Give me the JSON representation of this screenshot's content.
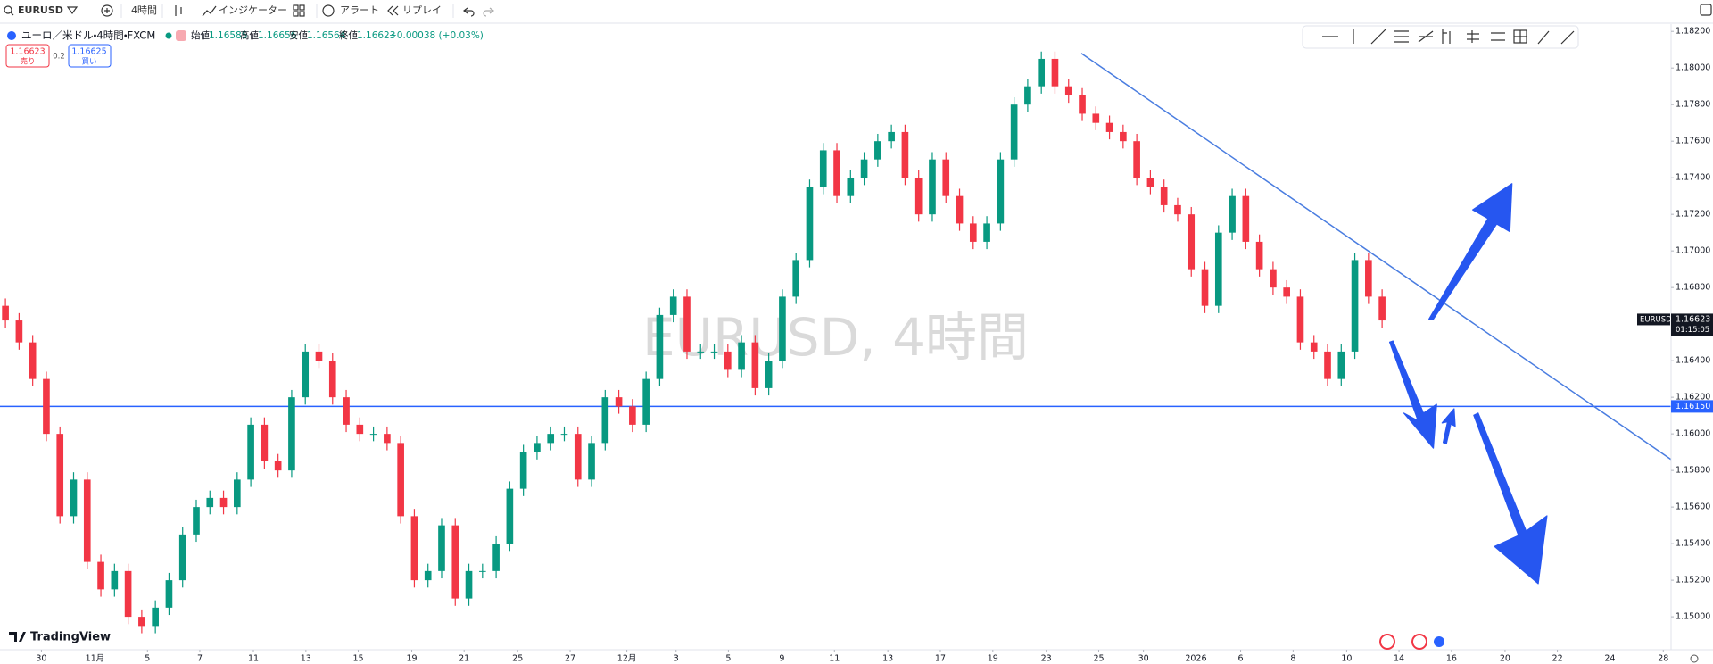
{
  "toolbar": {
    "symbol": "EURUSD",
    "interval": "4時間",
    "indicators": "インジケーター",
    "alert": "アラート",
    "replay": "リプレイ"
  },
  "legend": {
    "title": "ユーロ／米ドル・4時間・FXCM",
    "open_label": "始値",
    "open": "1.16585",
    "high_label": "高値",
    "high": "1.16656",
    "low_label": "安値",
    "low": "1.16564",
    "close_label": "終値",
    "close": "1.16623",
    "change": "+0.00038 (+0.03%)"
  },
  "trade": {
    "sell_price": "1.16623",
    "sell": "売り",
    "spread": "0.2",
    "buy_price": "1.16625",
    "buy": "買い"
  },
  "branding": "TradingView",
  "chart_data": {
    "type": "candlestick",
    "watermark": "EURUSD, 4時間",
    "up_color": "#089981",
    "down_color": "#f23645",
    "grid": false,
    "xlim": [
      -0.4,
      122.2
    ],
    "ylim": [
      1.1482,
      1.1824
    ],
    "xticks": [
      {
        "value": 2.64,
        "label": "30"
      },
      {
        "value": 6.57,
        "label": "11月"
      },
      {
        "value": 10.42,
        "label": "5"
      },
      {
        "value": 14.26,
        "label": "7"
      },
      {
        "value": 18.19,
        "label": "11"
      },
      {
        "value": 22.04,
        "label": "13"
      },
      {
        "value": 25.88,
        "label": "15"
      },
      {
        "value": 29.81,
        "label": "19"
      },
      {
        "value": 33.65,
        "label": "21"
      },
      {
        "value": 37.58,
        "label": "25"
      },
      {
        "value": 41.43,
        "label": "27"
      },
      {
        "value": 45.59,
        "label": "12月"
      },
      {
        "value": 49.2,
        "label": "3"
      },
      {
        "value": 53.04,
        "label": "5"
      },
      {
        "value": 56.97,
        "label": "9"
      },
      {
        "value": 60.82,
        "label": "11"
      },
      {
        "value": 64.74,
        "label": "13"
      },
      {
        "value": 68.59,
        "label": "17"
      },
      {
        "value": 72.44,
        "label": "19"
      },
      {
        "value": 76.36,
        "label": "23"
      },
      {
        "value": 80.21,
        "label": "25"
      },
      {
        "value": 83.49,
        "label": "30"
      },
      {
        "value": 87.34,
        "label": "2026"
      },
      {
        "value": 90.62,
        "label": "6"
      },
      {
        "value": 94.47,
        "label": "8"
      },
      {
        "value": 98.4,
        "label": "10"
      },
      {
        "value": 102.24,
        "label": "14"
      },
      {
        "value": 106.09,
        "label": "16"
      },
      {
        "value": 110.02,
        "label": "20"
      },
      {
        "value": 113.86,
        "label": "22"
      },
      {
        "value": 117.71,
        "label": "24"
      },
      {
        "value": 121.63,
        "label": "28"
      }
    ],
    "yticks": [
      {
        "value": 1.182,
        "label": "1.18200"
      },
      {
        "value": 1.18,
        "label": "1.18000"
      },
      {
        "value": 1.178,
        "label": "1.17800"
      },
      {
        "value": 1.176,
        "label": "1.17600"
      },
      {
        "value": 1.174,
        "label": "1.17400"
      },
      {
        "value": 1.172,
        "label": "1.17200"
      },
      {
        "value": 1.17,
        "label": "1.17000"
      },
      {
        "value": 1.168,
        "label": "1.16800"
      },
      {
        "value": 1.164,
        "label": "1.16400"
      },
      {
        "value": 1.162,
        "label": "1.16200"
      },
      {
        "value": 1.16,
        "label": "1.16000"
      },
      {
        "value": 1.158,
        "label": "1.15800"
      },
      {
        "value": 1.156,
        "label": "1.15600"
      },
      {
        "value": 1.154,
        "label": "1.15400"
      },
      {
        "value": 1.152,
        "label": "1.15200"
      },
      {
        "value": 1.15,
        "label": "1.15000"
      }
    ],
    "open": [
      1.167,
      1.1662,
      1.165,
      1.163,
      1.16,
      1.1555,
      1.1575,
      1.153,
      1.1515,
      1.1525,
      1.15,
      1.1495,
      1.1505,
      1.152,
      1.1545,
      1.156,
      1.1565,
      1.156,
      1.1575,
      1.1605,
      1.1585,
      1.158,
      1.162,
      1.1645,
      1.164,
      1.162,
      1.1605,
      1.16,
      1.16,
      1.1595,
      1.1555,
      1.152,
      1.1525,
      1.155,
      1.151,
      1.1525,
      1.1525,
      1.154,
      1.157,
      1.159,
      1.1595,
      1.16,
      1.16,
      1.1575,
      1.1595,
      1.162,
      1.1615,
      1.1605,
      1.163,
      1.1665,
      1.1675,
      1.1645,
      1.1645,
      1.1645,
      1.1635,
      1.165,
      1.1625,
      1.164,
      1.1675,
      1.1695,
      1.1735,
      1.1755,
      1.173,
      1.174,
      1.175,
      1.176,
      1.1765,
      1.174,
      1.172,
      1.175,
      1.173,
      1.1715,
      1.1705,
      1.1715,
      1.175,
      1.178,
      1.179,
      1.1805,
      1.179,
      1.1785,
      1.1775,
      1.177,
      1.1765,
      1.176,
      1.174,
      1.1735,
      1.1725,
      1.172,
      1.169,
      1.167,
      1.171,
      1.173,
      1.1705,
      1.169,
      1.168,
      1.1675,
      1.165,
      1.1645,
      1.163,
      1.1645,
      1.1695,
      1.1675
    ],
    "high": [
      1.1674,
      1.1666,
      1.1654,
      1.1634,
      1.1604,
      1.1579,
      1.1579,
      1.1534,
      1.1529,
      1.1529,
      1.1504,
      1.1509,
      1.1524,
      1.1549,
      1.1564,
      1.1569,
      1.1569,
      1.1579,
      1.1609,
      1.1609,
      1.1589,
      1.1624,
      1.1649,
      1.1649,
      1.1644,
      1.1624,
      1.1609,
      1.1604,
      1.1604,
      1.1599,
      1.1559,
      1.1529,
      1.1554,
      1.1554,
      1.1529,
      1.1529,
      1.1544,
      1.1574,
      1.1594,
      1.1599,
      1.1604,
      1.1604,
      1.1604,
      1.1599,
      1.1624,
      1.1624,
      1.1619,
      1.1634,
      1.1669,
      1.1679,
      1.1679,
      1.1649,
      1.1649,
      1.1649,
      1.1654,
      1.1654,
      1.1644,
      1.1679,
      1.1699,
      1.1739,
      1.1759,
      1.1759,
      1.1744,
      1.1754,
      1.1764,
      1.1769,
      1.1769,
      1.1744,
      1.1754,
      1.1754,
      1.1734,
      1.1719,
      1.1719,
      1.1754,
      1.1784,
      1.1794,
      1.1809,
      1.1809,
      1.1794,
      1.1789,
      1.1779,
      1.1774,
      1.1769,
      1.1764,
      1.1744,
      1.1739,
      1.1729,
      1.1724,
      1.1694,
      1.1714,
      1.1734,
      1.1734,
      1.1709,
      1.1694,
      1.1684,
      1.1679,
      1.1654,
      1.1649,
      1.1649,
      1.1699,
      1.1699,
      1.1679
    ],
    "low": [
      1.1658,
      1.1646,
      1.1626,
      1.1596,
      1.1551,
      1.1551,
      1.1526,
      1.1511,
      1.1511,
      1.1496,
      1.1491,
      1.1491,
      1.1501,
      1.1516,
      1.1541,
      1.1556,
      1.1556,
      1.1556,
      1.1571,
      1.1581,
      1.1576,
      1.1576,
      1.1616,
      1.1636,
      1.1616,
      1.1601,
      1.1596,
      1.1596,
      1.1591,
      1.1551,
      1.1516,
      1.1516,
      1.1521,
      1.1506,
      1.1506,
      1.1521,
      1.1521,
      1.1536,
      1.1566,
      1.1586,
      1.1591,
      1.1596,
      1.1571,
      1.1571,
      1.1591,
      1.1611,
      1.1601,
      1.1601,
      1.1626,
      1.1661,
      1.1641,
      1.1641,
      1.1641,
      1.1631,
      1.1631,
      1.1621,
      1.1621,
      1.1636,
      1.1671,
      1.1691,
      1.1731,
      1.1726,
      1.1726,
      1.1736,
      1.1746,
      1.1756,
      1.1736,
      1.1716,
      1.1716,
      1.1726,
      1.1711,
      1.1701,
      1.1701,
      1.1711,
      1.1746,
      1.1776,
      1.1786,
      1.1786,
      1.1781,
      1.1771,
      1.1766,
      1.1761,
      1.1756,
      1.1736,
      1.1731,
      1.1721,
      1.1716,
      1.1686,
      1.1666,
      1.1666,
      1.1706,
      1.1701,
      1.1686,
      1.1676,
      1.1671,
      1.1646,
      1.1641,
      1.1626,
      1.1626,
      1.1641,
      1.1671,
      1.1658
    ],
    "close": [
      1.1662,
      1.165,
      1.163,
      1.16,
      1.1555,
      1.1575,
      1.153,
      1.1515,
      1.1525,
      1.15,
      1.1495,
      1.1505,
      1.152,
      1.1545,
      1.156,
      1.1565,
      1.156,
      1.1575,
      1.1605,
      1.1585,
      1.158,
      1.162,
      1.1645,
      1.164,
      1.162,
      1.1605,
      1.16,
      1.16,
      1.1595,
      1.1555,
      1.152,
      1.1525,
      1.155,
      1.151,
      1.1525,
      1.1525,
      1.154,
      1.157,
      1.159,
      1.1595,
      1.16,
      1.16,
      1.1575,
      1.1595,
      1.162,
      1.1615,
      1.1605,
      1.163,
      1.1665,
      1.1675,
      1.1645,
      1.1645,
      1.1645,
      1.1635,
      1.165,
      1.1625,
      1.164,
      1.1675,
      1.1695,
      1.1735,
      1.1755,
      1.173,
      1.174,
      1.175,
      1.176,
      1.1765,
      1.174,
      1.172,
      1.175,
      1.173,
      1.1715,
      1.1705,
      1.1715,
      1.175,
      1.178,
      1.179,
      1.1805,
      1.179,
      1.1785,
      1.1775,
      1.177,
      1.1765,
      1.176,
      1.174,
      1.1735,
      1.1725,
      1.172,
      1.169,
      1.167,
      1.171,
      1.173,
      1.1705,
      1.169,
      1.168,
      1.1675,
      1.165,
      1.1645,
      1.163,
      1.1645,
      1.1695,
      1.1675,
      1.1662
    ],
    "hline": {
      "value": 1.1615,
      "label": "1.16150",
      "color": "#2962ff"
    },
    "last": {
      "value": 1.16623,
      "label": "1.16623",
      "symbol": "EURUSD",
      "countdown": "01:15:05",
      "color": "#9e9e9e"
    },
    "trendline": {
      "x": [
        78.93,
        122.2
      ],
      "y": [
        1.1808,
        1.1586
      ],
      "color": "#4a7de0"
    }
  }
}
